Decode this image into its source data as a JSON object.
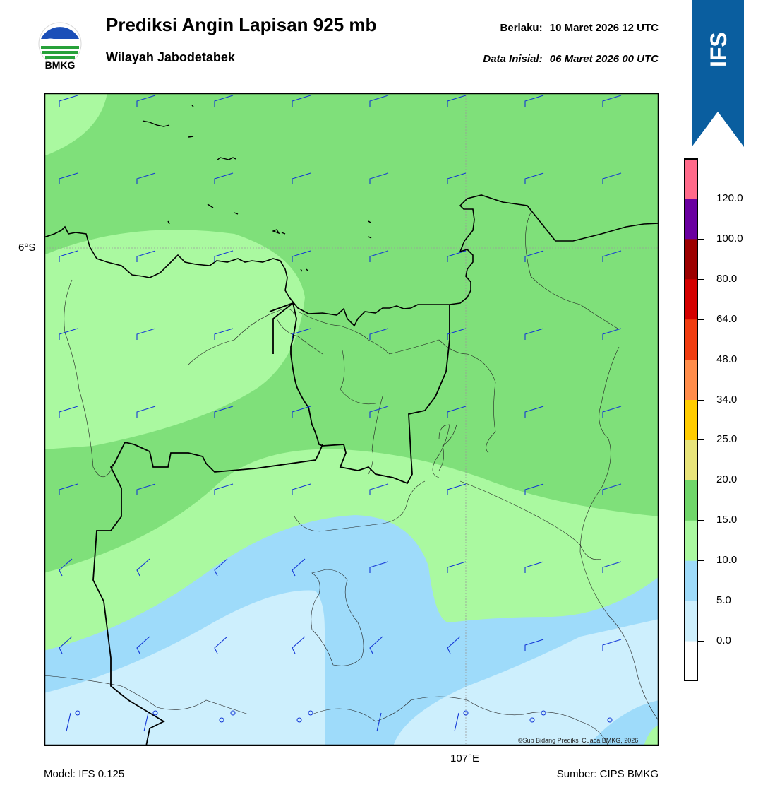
{
  "header": {
    "logo_text": "BMKG",
    "title": "Prediksi Angin Lapisan 925 mb",
    "subtitle": "Wilayah Jabodetabek",
    "valid_label": "Berlaku:",
    "valid_value": "10 Maret 2026 12 UTC",
    "init_label": "Data Inisial:",
    "init_value": "06 Maret 2026 00 UTC"
  },
  "model_badge": {
    "text": "IFS",
    "color": "#0a5e9f"
  },
  "map": {
    "lat_label": "6°S",
    "lon_label": "107°E",
    "copyright": "©Sub Bidang Prediksi Cuaca BMKG, 2026",
    "colors": {
      "calm": "#cdeffd",
      "light_blue": "#9edbfa",
      "light_green": "#aaf9a0",
      "green": "#7fe07a",
      "barb": "#1236d6"
    }
  },
  "footer": {
    "model": "Model: IFS 0.125",
    "source": "Sumber: CIPS BMKG"
  },
  "colorbar": {
    "bands": [
      {
        "color": "#ffffff"
      },
      {
        "color": "#cdeffd"
      },
      {
        "color": "#9edbfa"
      },
      {
        "color": "#aaf9a0"
      },
      {
        "color": "#6fd66a"
      },
      {
        "color": "#e8e47a"
      },
      {
        "color": "#ffcc00"
      },
      {
        "color": "#ff8c4a"
      },
      {
        "color": "#f03c10"
      },
      {
        "color": "#d40000"
      },
      {
        "color": "#9c0000"
      },
      {
        "color": "#6a00a0"
      },
      {
        "color": "#ff6a8a"
      }
    ],
    "ticks": [
      "0.0",
      "5.0",
      "10.0",
      "15.0",
      "20.0",
      "25.0",
      "34.0",
      "48.0",
      "64.0",
      "80.0",
      "100.0",
      "120.0"
    ]
  }
}
